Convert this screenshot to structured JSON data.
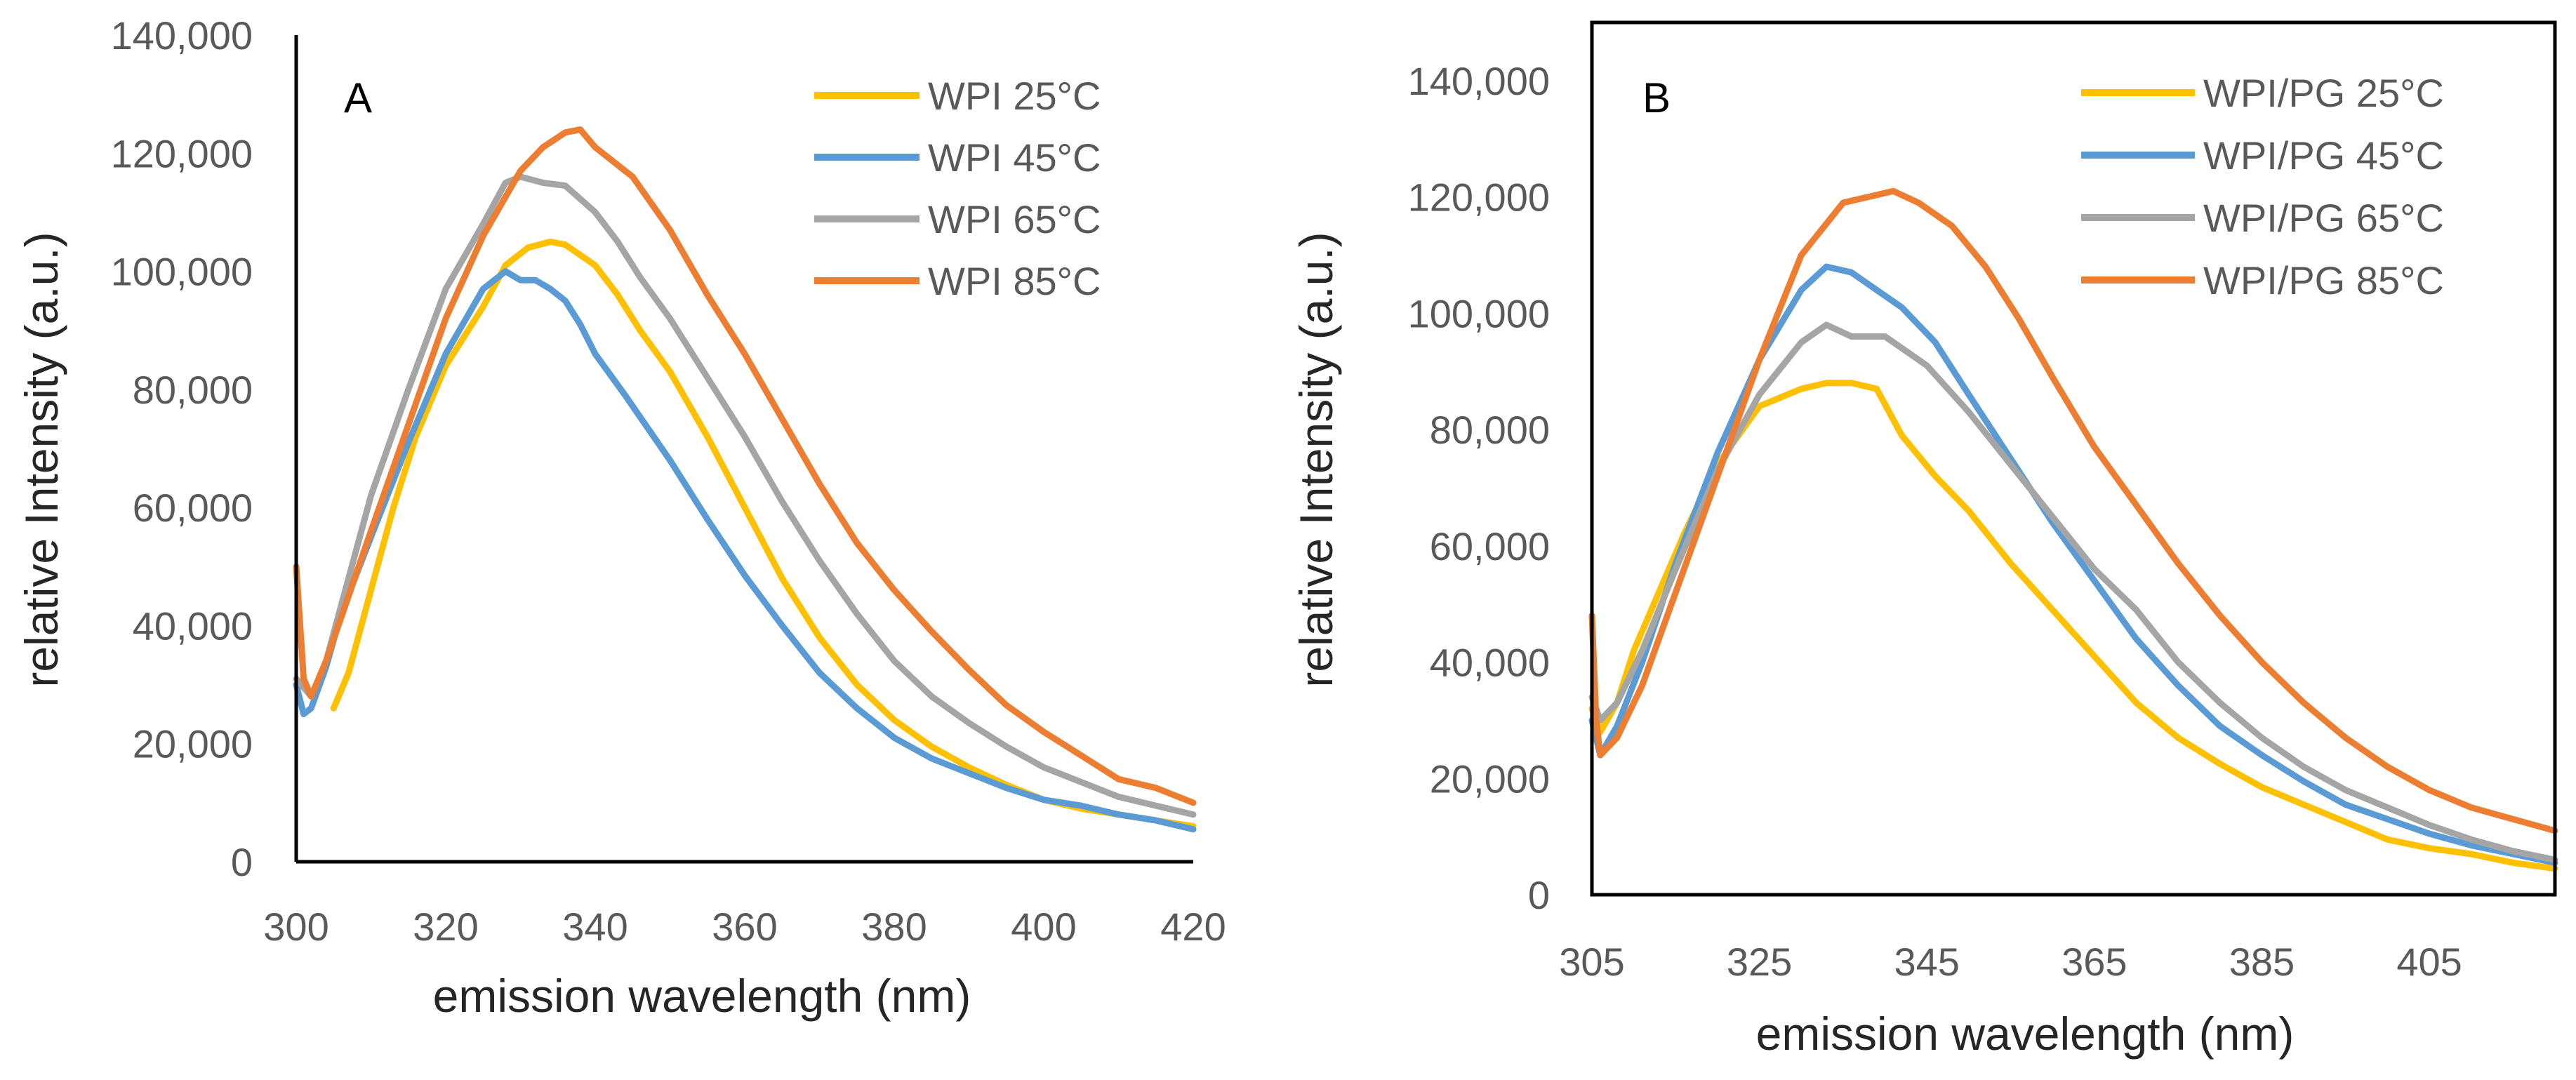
{
  "chart_data": [
    {
      "type": "line",
      "panel_label": "A",
      "xlabel": "emission wavelength (nm)",
      "ylabel": "relative Intensity (a.u.)",
      "xlim": [
        300,
        420
      ],
      "ylim": [
        0,
        140000
      ],
      "xticks": [
        300,
        320,
        340,
        360,
        380,
        400,
        420
      ],
      "yticks": [
        0,
        20000,
        40000,
        60000,
        80000,
        100000,
        120000,
        140000
      ],
      "xtick_labels": [
        "300",
        "320",
        "340",
        "360",
        "380",
        "400",
        "420"
      ],
      "ytick_labels": [
        "0",
        "20,000",
        "40,000",
        "60,000",
        "80,000",
        "100,000",
        "120,000",
        "140,000"
      ],
      "frame": "left-bottom",
      "legend_position": "top-right",
      "series": [
        {
          "name": "WPI 25°C",
          "color": "#FFC000",
          "x": [
            305,
            307,
            310,
            313,
            316,
            320,
            325,
            328,
            331,
            334,
            336,
            340,
            343,
            346,
            350,
            355,
            360,
            365,
            370,
            375,
            380,
            385,
            390,
            395,
            400,
            405,
            410,
            415,
            420
          ],
          "y": [
            26000,
            32000,
            46000,
            60000,
            72000,
            84000,
            94000,
            101000,
            104000,
            105000,
            104500,
            101000,
            96000,
            90000,
            83000,
            72000,
            60000,
            48000,
            38000,
            30000,
            24000,
            19500,
            16000,
            13000,
            10500,
            9000,
            8000,
            7000,
            6000
          ]
        },
        {
          "name": "WPI 45°C",
          "color": "#5B9BD5",
          "x": [
            300,
            301,
            302,
            304,
            306,
            310,
            315,
            320,
            325,
            328,
            330,
            332,
            334,
            336,
            338,
            340,
            344,
            350,
            355,
            360,
            365,
            370,
            375,
            380,
            385,
            390,
            395,
            400,
            405,
            410,
            415,
            420
          ],
          "y": [
            30000,
            25000,
            26000,
            33000,
            42000,
            55000,
            71000,
            86000,
            97000,
            100000,
            98500,
            98500,
            97000,
            95000,
            91000,
            86000,
            79000,
            68000,
            58000,
            48500,
            40000,
            32000,
            26000,
            21000,
            17500,
            15000,
            12500,
            10500,
            9500,
            8000,
            7000,
            5500
          ]
        },
        {
          "name": "WPI 65°C",
          "color": "#A5A5A5",
          "x": [
            300,
            302,
            304,
            307,
            310,
            315,
            320,
            325,
            328,
            330,
            333,
            336,
            340,
            343,
            346,
            350,
            355,
            360,
            365,
            370,
            375,
            380,
            385,
            390,
            395,
            400,
            405,
            410,
            415,
            420
          ],
          "y": [
            31000,
            28000,
            34000,
            48000,
            62000,
            80000,
            97000,
            108000,
            115000,
            116000,
            115000,
            114500,
            110000,
            105000,
            99000,
            92000,
            82000,
            72000,
            61000,
            51000,
            42000,
            34000,
            28000,
            23500,
            19500,
            16000,
            13500,
            11000,
            9500,
            8000
          ]
        },
        {
          "name": "WPI 85°C",
          "color": "#ED7D31",
          "x": [
            300,
            301,
            302,
            304,
            307,
            310,
            315,
            320,
            325,
            330,
            333,
            336,
            338,
            340,
            345,
            350,
            355,
            360,
            365,
            370,
            375,
            380,
            385,
            390,
            395,
            400,
            405,
            410,
            415,
            420
          ],
          "y": [
            50000,
            31000,
            28000,
            34000,
            45000,
            56000,
            74000,
            92000,
            106000,
            117000,
            121000,
            123500,
            124000,
            121000,
            116000,
            107000,
            96000,
            86000,
            75000,
            64000,
            54000,
            46000,
            39000,
            32500,
            26500,
            22000,
            18000,
            14000,
            12500,
            10000
          ]
        }
      ],
      "legend": {
        "entries": [
          "WPI 25°C",
          "WPI 45°C",
          "WPI 65°C",
          "WPI 85°C"
        ]
      }
    },
    {
      "type": "line",
      "panel_label": "B",
      "xlabel": "emission wavelength (nm)",
      "ylabel": "relative Intensity (a.u.)",
      "xlim": [
        305,
        420
      ],
      "ylim": [
        0,
        150000
      ],
      "xticks": [
        305,
        325,
        345,
        365,
        385,
        405
      ],
      "yticks": [
        0,
        20000,
        40000,
        60000,
        80000,
        100000,
        120000,
        140000
      ],
      "xtick_labels": [
        "305",
        "325",
        "345",
        "365",
        "385",
        "405"
      ],
      "ytick_labels": [
        "0",
        "20,000",
        "40,000",
        "60,000",
        "80,000",
        "100,000",
        "120,000",
        "140,000"
      ],
      "frame": "box",
      "legend_position": "top-right",
      "series": [
        {
          "name": "WPI/PG 25°C",
          "color": "#FFC000",
          "x": [
            305,
            306,
            308,
            310,
            313,
            316,
            320,
            325,
            330,
            333,
            336,
            339,
            342,
            346,
            350,
            355,
            360,
            365,
            370,
            375,
            380,
            385,
            390,
            395,
            400,
            405,
            410,
            415,
            420
          ],
          "y": [
            32000,
            28000,
            33000,
            42000,
            52000,
            62000,
            74000,
            84000,
            87000,
            88000,
            88000,
            87000,
            79000,
            72000,
            66000,
            57000,
            49000,
            41000,
            33000,
            27000,
            22500,
            18500,
            15500,
            12500,
            9500,
            8000,
            7000,
            5500,
            4500
          ]
        },
        {
          "name": "WPI/PG 45°C",
          "color": "#5B9BD5",
          "x": [
            305,
            306,
            308,
            311,
            315,
            320,
            325,
            330,
            333,
            336,
            339,
            342,
            346,
            350,
            355,
            360,
            365,
            370,
            375,
            380,
            385,
            390,
            395,
            400,
            405,
            410,
            415,
            420
          ],
          "y": [
            30000,
            24000,
            29000,
            40000,
            57000,
            76000,
            92000,
            104000,
            108000,
            107000,
            104000,
            101000,
            95000,
            86000,
            75000,
            64000,
            54000,
            44000,
            36000,
            29000,
            24000,
            19500,
            15500,
            13000,
            10500,
            8500,
            7000,
            5500
          ]
        },
        {
          "name": "WPI/PG 65°C",
          "color": "#A5A5A5",
          "x": [
            305,
            306,
            308,
            311,
            315,
            320,
            325,
            330,
            333,
            336,
            340,
            345,
            350,
            355,
            360,
            365,
            370,
            375,
            380,
            385,
            390,
            395,
            400,
            405,
            410,
            415,
            420
          ],
          "y": [
            34000,
            30000,
            33000,
            42000,
            56000,
            73000,
            86000,
            95000,
            98000,
            96000,
            96000,
            91000,
            83000,
            74000,
            65000,
            56000,
            49000,
            40000,
            33000,
            27000,
            22000,
            18000,
            15000,
            12000,
            9500,
            7500,
            6000
          ]
        },
        {
          "name": "WPI/PG 85°C",
          "color": "#ED7D31",
          "x": [
            305,
            305.5,
            306,
            308,
            311,
            315,
            320,
            325,
            330,
            335,
            338,
            341,
            344,
            348,
            352,
            356,
            360,
            365,
            370,
            375,
            380,
            385,
            390,
            395,
            400,
            405,
            410,
            415,
            420
          ],
          "y": [
            48000,
            30000,
            24000,
            27000,
            36000,
            52000,
            72000,
            92000,
            110000,
            119000,
            120000,
            121000,
            119000,
            115000,
            108000,
            99000,
            89000,
            77000,
            67000,
            57000,
            48000,
            40000,
            33000,
            27000,
            22000,
            18000,
            15000,
            13000,
            11000
          ]
        }
      ],
      "legend": {
        "entries": [
          "WPI/PG 25°C",
          "WPI/PG 45°C",
          "WPI/PG 65°C",
          "WPI/PG 85°C"
        ]
      }
    }
  ]
}
